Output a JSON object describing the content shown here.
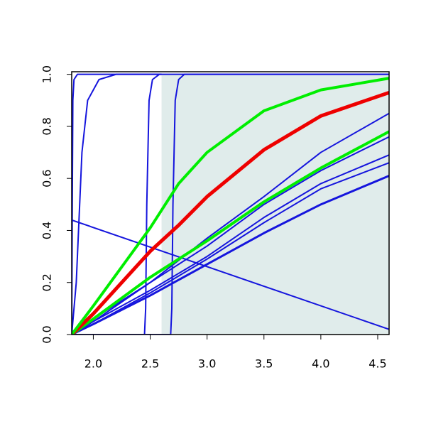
{
  "chart_data": {
    "type": "line",
    "xlim": [
      1.81,
      4.6
    ],
    "ylim": [
      0,
      1.01
    ],
    "xticks": [
      {
        "value": 2,
        "label": "2.0"
      },
      2.5,
      {
        "value": 3,
        "label": "3.0"
      },
      3.5,
      {
        "value": 4,
        "label": "4.0"
      },
      4.5
    ],
    "yticks": [
      {
        "value": 0,
        "label": "0.0"
      },
      0.2,
      0.4,
      0.6,
      0.8,
      {
        "value": 1,
        "label": "1.0"
      }
    ],
    "shaded_region": {
      "xlim": [
        2.6,
        4.6
      ],
      "ylim": [
        0,
        1
      ],
      "color": "#e0eceb"
    },
    "series": [
      {
        "color": "#1515dd",
        "line_width": 2,
        "x": [
          1.81,
          4.6
        ],
        "values": [
          0.44,
          0.02
        ]
      },
      {
        "color": "#1515dd",
        "line_width": 2,
        "x": [
          1.81,
          1.815,
          1.82,
          1.83,
          1.86,
          2.6
        ],
        "values": [
          0,
          0.5,
          0.9,
          0.98,
          1,
          1
        ]
      },
      {
        "color": "#1515dd",
        "line_width": 2,
        "x": [
          1.81,
          1.85,
          1.9,
          1.95,
          2.05,
          2.2,
          2.6
        ],
        "values": [
          0,
          0.2,
          0.7,
          0.9,
          0.98,
          1,
          1
        ]
      },
      {
        "color": "#1515dd",
        "line_width": 2,
        "x": [
          1.81,
          2.45,
          2.46,
          2.47,
          2.49,
          2.52,
          2.58,
          4.6
        ],
        "values": [
          0,
          0,
          0.1,
          0.5,
          0.9,
          0.98,
          1,
          1
        ]
      },
      {
        "color": "#1515dd",
        "line_width": 2,
        "x": [
          1.81,
          2.68,
          2.69,
          2.7,
          2.72,
          2.75,
          2.8,
          4.6
        ],
        "values": [
          0,
          0,
          0.1,
          0.5,
          0.9,
          0.98,
          1,
          1
        ]
      },
      {
        "color": "#1515dd",
        "line_width": 2,
        "x": [
          1.81,
          2.0,
          2.5,
          3.0,
          3.5,
          4.0,
          4.6
        ],
        "values": [
          0,
          0.06,
          0.2,
          0.37,
          0.53,
          0.7,
          0.85
        ]
      },
      {
        "color": "#1515dd",
        "line_width": 2,
        "x": [
          1.81,
          2.0,
          2.5,
          3.0,
          3.5,
          4.0,
          4.6
        ],
        "values": [
          0,
          0.05,
          0.2,
          0.34,
          0.5,
          0.63,
          0.76
        ]
      },
      {
        "color": "#1515dd",
        "line_width": 2,
        "x": [
          1.81,
          2.0,
          2.5,
          3.0,
          3.5,
          4.0,
          4.6
        ],
        "values": [
          0,
          0.05,
          0.17,
          0.3,
          0.45,
          0.58,
          0.69
        ]
      },
      {
        "color": "#1515dd",
        "line_width": 2,
        "x": [
          1.81,
          2.0,
          2.5,
          3.0,
          3.5,
          4.0,
          4.6
        ],
        "values": [
          0,
          0.04,
          0.16,
          0.29,
          0.43,
          0.56,
          0.66
        ]
      },
      {
        "color": "#1515dd",
        "line_width": 3,
        "x": [
          1.81,
          2.0,
          2.5,
          3.0,
          3.5,
          4.0,
          4.6
        ],
        "values": [
          0,
          0.04,
          0.15,
          0.27,
          0.39,
          0.5,
          0.61
        ]
      },
      {
        "color": "#00ee00",
        "line_width": 4,
        "x": [
          1.81,
          2.0,
          2.5,
          3.0,
          3.5,
          4.0,
          4.6
        ],
        "values": [
          0,
          0.06,
          0.22,
          0.36,
          0.51,
          0.64,
          0.78
        ]
      },
      {
        "color": "#ee0000",
        "line_width": 5,
        "x": [
          1.81,
          2.0,
          2.5,
          2.75,
          3.0,
          3.5,
          4.0,
          4.6
        ],
        "values": [
          0,
          0.08,
          0.32,
          0.42,
          0.53,
          0.71,
          0.84,
          0.93
        ]
      },
      {
        "color": "#00ee00",
        "line_width": 4,
        "x": [
          1.81,
          2.0,
          2.25,
          2.5,
          2.75,
          3.0,
          3.5,
          4.0,
          4.6
        ],
        "values": [
          0,
          0.11,
          0.26,
          0.41,
          0.58,
          0.7,
          0.86,
          0.94,
          0.985
        ]
      }
    ]
  }
}
